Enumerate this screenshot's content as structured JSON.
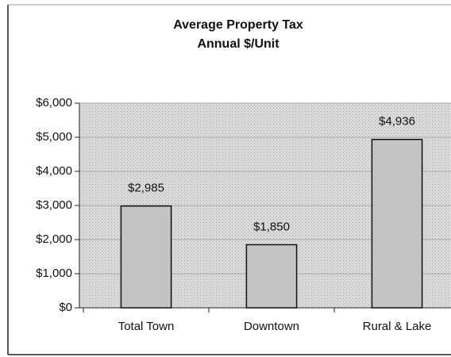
{
  "chart_data": {
    "type": "bar",
    "title": "Average Property Tax",
    "subtitle": "Annual $/Unit",
    "categories": [
      "Total Town",
      "Downtown",
      "Rural & Lake"
    ],
    "values": [
      2985,
      1850,
      4936
    ],
    "value_labels": [
      "$2,985",
      "$1,850",
      "$4,936"
    ],
    "color": "#c4c4c4",
    "ylim": [
      0,
      6000
    ],
    "yticks": [
      {
        "value": 0,
        "label": "$0"
      },
      {
        "value": 1000,
        "label": "$1,000"
      },
      {
        "value": 2000,
        "label": "$2,000"
      },
      {
        "value": 3000,
        "label": "$3,000"
      },
      {
        "value": 4000,
        "label": "$4,000"
      },
      {
        "value": 5000,
        "label": "$5,000"
      },
      {
        "value": 6000,
        "label": "$6,000"
      }
    ],
    "grid": true
  }
}
